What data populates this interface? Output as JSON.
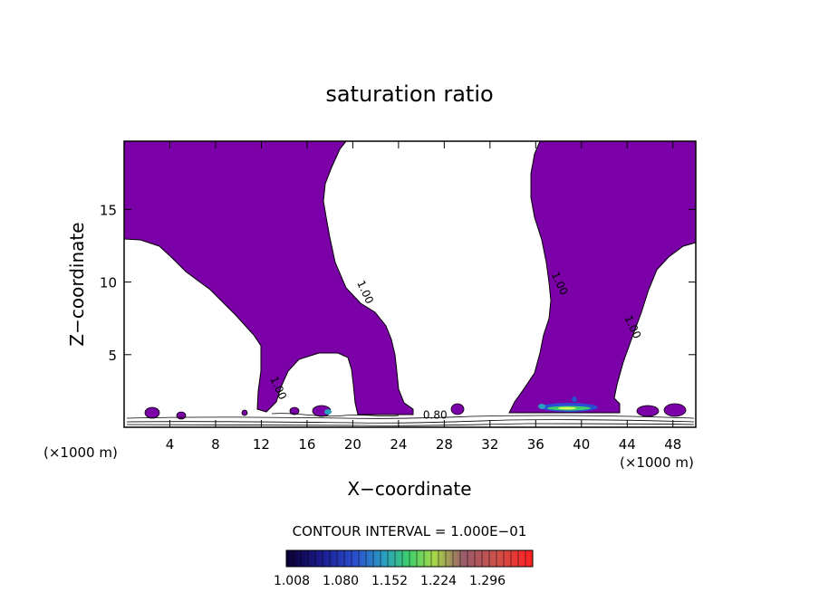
{
  "chart_data": {
    "type": "contour",
    "title": "saturation ratio",
    "xlabel": "X−coordinate",
    "ylabel": "Z−coordinate",
    "x_unit": "(×1000 m)",
    "z_unit": "(×1000 m)",
    "xlim": [
      0,
      50
    ],
    "ylim": [
      0,
      19.7
    ],
    "x_ticks": [
      "4",
      "8",
      "12",
      "16",
      "20",
      "24",
      "28",
      "32",
      "36",
      "40",
      "44",
      "48"
    ],
    "x_tick_values": [
      4,
      8,
      12,
      16,
      20,
      24,
      28,
      32,
      36,
      40,
      44,
      48
    ],
    "y_ticks": [
      "5",
      "10",
      "15"
    ],
    "y_tick_values": [
      5,
      10,
      15
    ],
    "contour_interval_text": "CONTOUR INTERVAL = 1.000E−01",
    "contour_labels": [
      {
        "text": "1.00",
        "x": 20.8,
        "z": 9.2
      },
      {
        "text": "1.00",
        "x": 37.8,
        "z": 9.8
      },
      {
        "text": "1.00",
        "x": 44.2,
        "z": 6.8
      },
      {
        "text": "1.00",
        "x": 13.2,
        "z": 2.6
      },
      {
        "text": "0.80",
        "x": 27.2,
        "z": 0.6
      }
    ],
    "colorbar": {
      "labels": [
        "1.008",
        "1.080",
        "1.152",
        "1.224",
        "1.296"
      ],
      "values": [
        1.008,
        1.08,
        1.152,
        1.224,
        1.296
      ]
    },
    "colors": {
      "fill_main": "#7b00a8",
      "outline": "#000000",
      "colorbar_stops": [
        "#0b0033",
        "#1a1a8c",
        "#2a4fd0",
        "#2aa0c0",
        "#3fcf6a",
        "#a9d84a",
        "#c86a4a",
        "#e84a4a",
        "#ff2020"
      ]
    }
  }
}
